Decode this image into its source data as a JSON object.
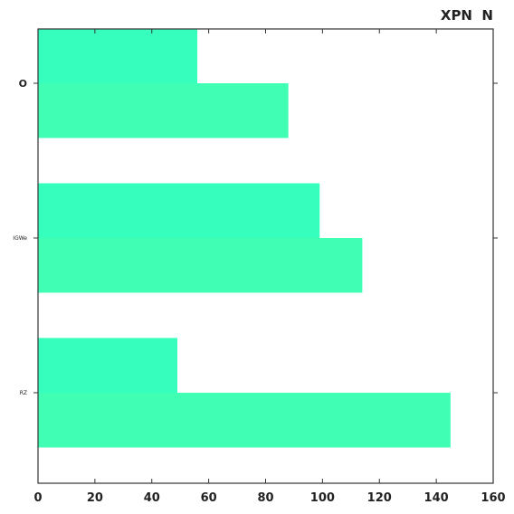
{
  "chart_data": {
    "type": "bar",
    "orientation": "horizontal",
    "title": "XPN  N",
    "categories": [
      "O",
      "IGWe",
      "RZ"
    ],
    "series": [
      {
        "values": [
          56,
          99,
          49
        ]
      },
      {
        "values": [
          88,
          114,
          145
        ]
      }
    ],
    "xlim": [
      0,
      160
    ],
    "xticks": [
      0,
      20,
      40,
      60,
      80,
      100,
      120,
      140,
      160
    ],
    "grid": false,
    "colors": [
      "#36ffbe",
      "#40ffb4"
    ]
  }
}
